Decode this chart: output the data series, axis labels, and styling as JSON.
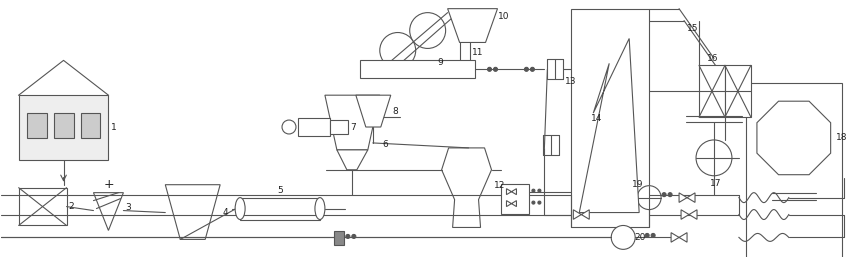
{
  "bg": "#ffffff",
  "lc": "#555555",
  "lw": 0.8,
  "fw": 8.51,
  "fh": 2.58,
  "dpi": 100,
  "xlim": [
    0,
    851
  ],
  "ylim": [
    0,
    258
  ]
}
